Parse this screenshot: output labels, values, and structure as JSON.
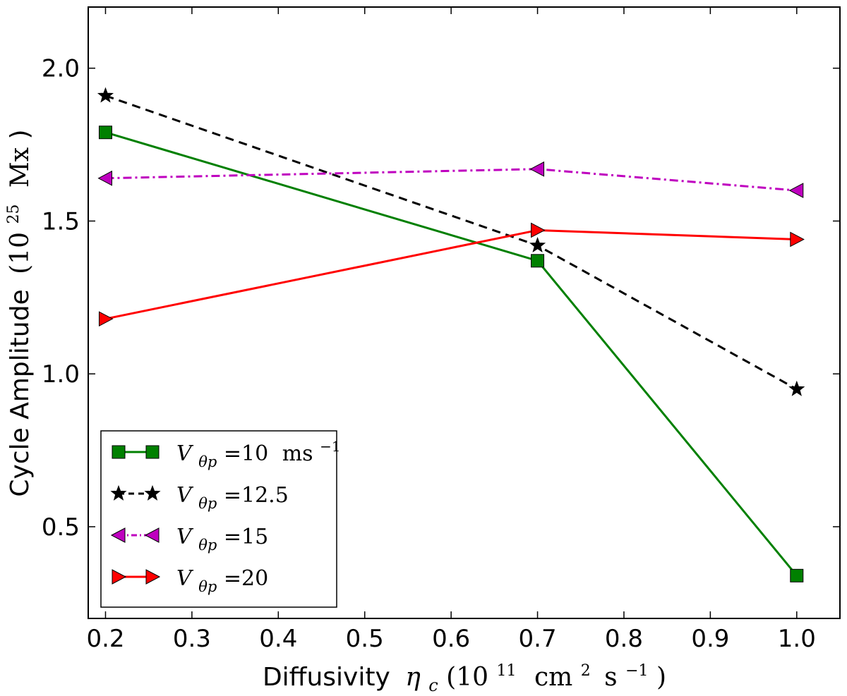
{
  "chart_data": {
    "type": "line",
    "title": "",
    "xlabel": {
      "prefix": "Diffusivity",
      "symbol": "η",
      "subscript": "c",
      "unit_open": "(10",
      "unit_exp": "11",
      "unit_mid": "cm",
      "unit_mid_exp": "2",
      "unit_s": "s",
      "unit_s_exp": "−1",
      "unit_close": ")"
    },
    "ylabel": {
      "prefix": "Cycle Amplitude",
      "unit_open": "(10",
      "unit_exp": "25",
      "unit_mid": "Mx",
      "unit_close": ")"
    },
    "xlim": [
      0.18,
      1.05
    ],
    "ylim": [
      0.2,
      2.2
    ],
    "xticks": [
      0.2,
      0.3,
      0.4,
      0.5,
      0.6,
      0.7,
      0.8,
      0.9,
      1.0
    ],
    "xtick_labels": [
      "0.2",
      "0.3",
      "0.4",
      "0.5",
      "0.6",
      "0.7",
      "0.8",
      "0.9",
      "1.0"
    ],
    "yticks": [
      0.5,
      1.0,
      1.5,
      2.0
    ],
    "ytick_labels": [
      "0.5",
      "1.0",
      "1.5",
      "2.0"
    ],
    "x": [
      0.2,
      0.7,
      1.0
    ],
    "series": [
      {
        "name": "V_θp=10 ms^-1",
        "legend_prefix": "V",
        "legend_sub": "θp",
        "legend_value": "=10",
        "legend_unit": "ms",
        "legend_unit_exp": "−1",
        "values": [
          1.79,
          1.37,
          0.34
        ],
        "color": "#008000",
        "marker": "square",
        "dash": "solid"
      },
      {
        "name": "V_θp=12.5",
        "legend_prefix": "V",
        "legend_sub": "θp",
        "legend_value": "=12.5",
        "legend_unit": "",
        "legend_unit_exp": "",
        "values": [
          1.91,
          1.42,
          0.95
        ],
        "color": "#000000",
        "marker": "star",
        "dash": "dashed"
      },
      {
        "name": "V_θp=15",
        "legend_prefix": "V",
        "legend_sub": "θp",
        "legend_value": "=15",
        "legend_unit": "",
        "legend_unit_exp": "",
        "values": [
          1.64,
          1.67,
          1.6
        ],
        "color": "#bf00bf",
        "marker": "triangle-left",
        "dash": "dashdot"
      },
      {
        "name": "V_θp=20",
        "legend_prefix": "V",
        "legend_sub": "θp",
        "legend_value": "=20",
        "legend_unit": "",
        "legend_unit_exp": "",
        "values": [
          1.18,
          1.47,
          1.44
        ],
        "color": "#ff0000",
        "marker": "triangle-right",
        "dash": "solid"
      }
    ],
    "legend_position": "lower-left",
    "grid": false
  }
}
